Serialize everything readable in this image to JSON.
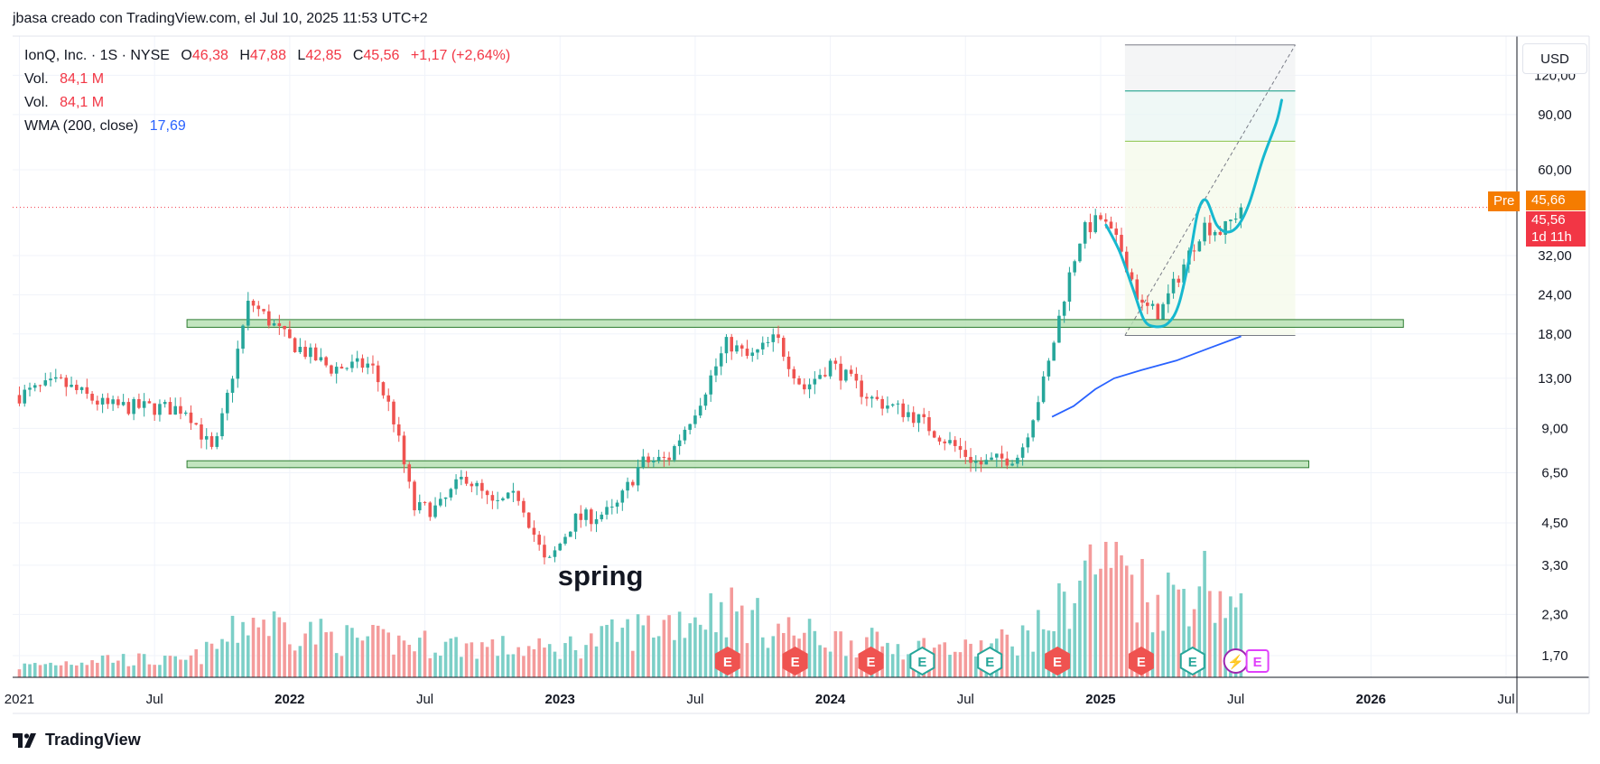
{
  "header": {
    "title": "jbasa creado con TradingView.com, el Jul 10, 2025 11:53 UTC+2"
  },
  "legend": {
    "symbol": "IonQ, Inc. · 1S · NYSE",
    "o_label": "O",
    "o_value": "46,38",
    "h_label": "H",
    "h_value": "47,88",
    "l_label": "L",
    "l_value": "42,85",
    "c_label": "C",
    "c_value": "45,56",
    "change": "+1,17 (+2,64%)",
    "vol1_label": "Vol.",
    "vol1_value": "84,1 M",
    "vol2_label": "Vol.",
    "vol2_value": "84,1 M",
    "wma_label": "WMA (200, close)",
    "wma_value": "17,69"
  },
  "currency": "USD",
  "price_tags": {
    "pre_label": "Pre",
    "pre_value": "45,66",
    "last_value": "45,56",
    "countdown": "1d 11h",
    "colors": {
      "pre": "#f57c00",
      "last": "#f23645"
    }
  },
  "annotation": {
    "text": "spring"
  },
  "footer": {
    "brand": "TradingView"
  },
  "chart_data": {
    "type": "candlestick",
    "scale": "log",
    "ylim": [
      1.45,
      160
    ],
    "y_ticks": [
      {
        "v": 120,
        "label": "120,00"
      },
      {
        "v": 90,
        "label": "90,00"
      },
      {
        "v": 60,
        "label": "60,00"
      },
      {
        "v": 32,
        "label": "32,00"
      },
      {
        "v": 24,
        "label": "24,00"
      },
      {
        "v": 18,
        "label": "18,00"
      },
      {
        "v": 13,
        "label": "13,00"
      },
      {
        "v": 9,
        "label": "9,00"
      },
      {
        "v": 6.5,
        "label": "6,50"
      },
      {
        "v": 4.5,
        "label": "4,50"
      },
      {
        "v": 3.3,
        "label": "3,30"
      },
      {
        "v": 2.3,
        "label": "2,30"
      },
      {
        "v": 1.7,
        "label": "1,70"
      }
    ],
    "x_ticks": [
      {
        "t": 2021.0,
        "label": "2021",
        "bold": false
      },
      {
        "t": 2021.5,
        "label": "Jul",
        "bold": false
      },
      {
        "t": 2022.0,
        "label": "2022",
        "bold": true
      },
      {
        "t": 2022.5,
        "label": "Jul",
        "bold": false
      },
      {
        "t": 2023.0,
        "label": "2023",
        "bold": true
      },
      {
        "t": 2023.5,
        "label": "Jul",
        "bold": false
      },
      {
        "t": 2024.0,
        "label": "2024",
        "bold": true
      },
      {
        "t": 2024.5,
        "label": "Jul",
        "bold": false
      },
      {
        "t": 2025.0,
        "label": "2025",
        "bold": true
      },
      {
        "t": 2025.5,
        "label": "Jul",
        "bold": false
      },
      {
        "t": 2026.0,
        "label": "2026",
        "bold": true
      },
      {
        "t": 2026.5,
        "label": "Jul",
        "bold": false
      }
    ],
    "colors": {
      "up": "#26a69a",
      "down": "#ef5350",
      "up_vol": "#7ccfc7",
      "down_vol": "#f49b9b",
      "wma": "#2962ff",
      "curve": "#17b8cf",
      "zone": "#b7e1b4",
      "zone_border": "#2e7d32"
    },
    "last_price": 45.56,
    "anchors": [
      [
        2021.0,
        11.5
      ],
      [
        2021.15,
        12.6
      ],
      [
        2021.32,
        10.6
      ],
      [
        2021.62,
        10.4
      ],
      [
        2021.72,
        7.4
      ],
      [
        2021.85,
        23.0
      ],
      [
        2022.0,
        17.0
      ],
      [
        2022.15,
        14.0
      ],
      [
        2022.3,
        14.4
      ],
      [
        2022.38,
        10.0
      ],
      [
        2022.46,
        5.0
      ],
      [
        2022.55,
        5.0
      ],
      [
        2022.65,
        6.4
      ],
      [
        2022.75,
        5.1
      ],
      [
        2022.85,
        5.5
      ],
      [
        2022.95,
        3.25
      ],
      [
        2023.05,
        4.6
      ],
      [
        2023.2,
        4.9
      ],
      [
        2023.3,
        7.0
      ],
      [
        2023.4,
        7.2
      ],
      [
        2023.52,
        11.2
      ],
      [
        2023.62,
        17.0
      ],
      [
        2023.7,
        15.0
      ],
      [
        2023.8,
        17.5
      ],
      [
        2023.9,
        12.0
      ],
      [
        2024.0,
        14.5
      ],
      [
        2024.15,
        11.2
      ],
      [
        2024.3,
        10.0
      ],
      [
        2024.45,
        8.0
      ],
      [
        2024.55,
        6.9
      ],
      [
        2024.7,
        7.4
      ],
      [
        2024.8,
        13.5
      ],
      [
        2024.87,
        25.0
      ],
      [
        2024.93,
        38.0
      ],
      [
        2025.0,
        42.0
      ],
      [
        2025.08,
        33.0
      ],
      [
        2025.15,
        22.0
      ],
      [
        2025.22,
        21.0
      ],
      [
        2025.3,
        29.0
      ],
      [
        2025.38,
        40.0
      ],
      [
        2025.45,
        38.0
      ],
      [
        2025.52,
        45.5
      ]
    ],
    "volume_anchors": [
      [
        2021.0,
        0.1
      ],
      [
        2021.3,
        0.18
      ],
      [
        2021.6,
        0.14
      ],
      [
        2021.85,
        0.55
      ],
      [
        2022.2,
        0.35
      ],
      [
        2022.6,
        0.3
      ],
      [
        2022.95,
        0.25
      ],
      [
        2023.3,
        0.45
      ],
      [
        2023.6,
        0.65
      ],
      [
        2023.8,
        0.45
      ],
      [
        2024.0,
        0.35
      ],
      [
        2024.5,
        0.25
      ],
      [
        2024.75,
        0.4
      ],
      [
        2024.95,
        1.0
      ],
      [
        2025.05,
        1.2
      ],
      [
        2025.2,
        0.7
      ],
      [
        2025.38,
        0.9
      ],
      [
        2025.52,
        0.6
      ]
    ],
    "wma": [
      [
        2024.82,
        9.8
      ],
      [
        2024.9,
        10.6
      ],
      [
        2024.98,
        12.0
      ],
      [
        2025.05,
        13.0
      ],
      [
        2025.15,
        13.8
      ],
      [
        2025.28,
        14.8
      ],
      [
        2025.4,
        16.2
      ],
      [
        2025.52,
        17.69
      ]
    ],
    "projection_curve": [
      [
        2025.02,
        40.0
      ],
      [
        2025.07,
        33.0
      ],
      [
        2025.12,
        25.0
      ],
      [
        2025.16,
        20.0
      ],
      [
        2025.2,
        19.0
      ],
      [
        2025.25,
        19.5
      ],
      [
        2025.29,
        22.5
      ],
      [
        2025.33,
        32.0
      ],
      [
        2025.36,
        44.0
      ],
      [
        2025.39,
        48.0
      ],
      [
        2025.43,
        40.0
      ],
      [
        2025.47,
        38.0
      ],
      [
        2025.51,
        40.0
      ],
      [
        2025.55,
        47.0
      ],
      [
        2025.6,
        65.0
      ],
      [
        2025.65,
        85.0
      ],
      [
        2025.67,
        100.0
      ]
    ],
    "support_zones": [
      {
        "t0": 2021.62,
        "t1": 2026.12,
        "low": 18.9,
        "high": 20.0
      },
      {
        "t0": 2021.62,
        "t1": 2025.77,
        "low": 6.75,
        "high": 7.1
      }
    ],
    "fib_box": {
      "t0": 2025.09,
      "t1": 2025.72,
      "low": 17.8,
      "high": 150,
      "levels": [
        {
          "v": 150,
          "color": "#787b86"
        },
        {
          "v": 107,
          "color": "#089981"
        },
        {
          "v": 74,
          "color": "#8bc34a"
        },
        {
          "v": 17.8,
          "color": "#787b86"
        }
      ]
    },
    "trend_line": {
      "t0": 2025.09,
      "v0": 17.8,
      "t1": 2025.72,
      "v1": 150
    },
    "earnings_markers": [
      {
        "t": 2023.62,
        "kind": "down",
        "label": "E"
      },
      {
        "t": 2023.87,
        "kind": "down",
        "label": "E"
      },
      {
        "t": 2024.15,
        "kind": "down",
        "label": "E"
      },
      {
        "t": 2024.34,
        "kind": "up",
        "label": "E"
      },
      {
        "t": 2024.59,
        "kind": "up",
        "label": "E"
      },
      {
        "t": 2024.84,
        "kind": "down",
        "label": "E"
      },
      {
        "t": 2025.15,
        "kind": "down",
        "label": "E"
      },
      {
        "t": 2025.34,
        "kind": "up",
        "label": "E"
      },
      {
        "t": 2025.5,
        "kind": "flash",
        "label": "⚡"
      },
      {
        "t": 2025.58,
        "kind": "future",
        "label": "E"
      }
    ]
  }
}
